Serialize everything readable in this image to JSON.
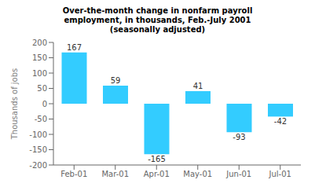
{
  "chart_data": {
    "type": "bar",
    "title": "Over-the-month change in nonfarm payroll\nemployment, in thousands, Feb.-July 2001",
    "subtitle": "(seasonally adjusted)",
    "categories": [
      "Feb-01",
      "Mar-01",
      "Apr-01",
      "May-01",
      "Jun-01",
      "Jul-01"
    ],
    "values": [
      167,
      59,
      -165,
      41,
      -93,
      -42
    ],
    "color": "#33CCFF",
    "ylabel": "Thousands of jobs",
    "ylim": [
      -200,
      200
    ],
    "yticks": [
      -200,
      -150,
      -100,
      -50,
      0,
      50,
      100,
      150,
      200
    ],
    "grid": false,
    "data_labels": true
  }
}
